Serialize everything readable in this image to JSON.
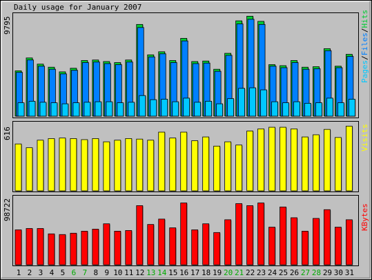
{
  "title": "Daily usage for January 2007",
  "colors": {
    "background": "#c0c0c0",
    "hits": "#00cc33",
    "files": "#0080ff",
    "pages": "#00c8ff",
    "visits": "#ffff00",
    "kbytes": "#ff0000",
    "weekend_label": "#00aa00",
    "weekday_label": "#000000"
  },
  "chart_data": [
    {
      "type": "bar",
      "panel": "hits-files-pages",
      "title": "Daily usage for January 2007",
      "ymax_label": "9795",
      "legend_parts": [
        {
          "text": "Pages",
          "color": "#00c8ff"
        },
        {
          "text": "/",
          "color": "#000000"
        },
        {
          "text": "Files",
          "color": "#0080ff"
        },
        {
          "text": "/",
          "color": "#000000"
        },
        {
          "text": "Hits",
          "color": "#00cc33"
        }
      ],
      "ylim": [
        0,
        9795
      ],
      "categories": [
        "1",
        "2",
        "3",
        "4",
        "5",
        "6",
        "7",
        "8",
        "9",
        "10",
        "11",
        "12",
        "13",
        "14",
        "15",
        "16",
        "17",
        "18",
        "19",
        "20",
        "21",
        "22",
        "23",
        "24",
        "25",
        "26",
        "27",
        "28",
        "29",
        "30",
        "31"
      ],
      "weekend_days": [
        "6",
        "7",
        "13",
        "14",
        "20",
        "21",
        "27",
        "28"
      ],
      "series": [
        {
          "name": "Hits",
          "values": [
            4400,
            5650,
            5050,
            4750,
            4300,
            4650,
            5400,
            5450,
            5300,
            5200,
            5450,
            8900,
            5950,
            6250,
            5400,
            7550,
            5300,
            5350,
            4550,
            6100,
            9250,
            9700,
            9200,
            5000,
            4900,
            5400,
            4750,
            4800,
            6550,
            4850,
            6000
          ]
        },
        {
          "name": "Files",
          "values": [
            4250,
            5450,
            4850,
            4550,
            4100,
            4450,
            5200,
            5250,
            5100,
            5000,
            5250,
            8600,
            5750,
            6050,
            5200,
            7300,
            5100,
            5150,
            4350,
            5900,
            8950,
            9400,
            8900,
            4850,
            4700,
            5200,
            4550,
            4600,
            6350,
            4700,
            5800
          ]
        },
        {
          "name": "Pages",
          "values": [
            1300,
            1450,
            1350,
            1300,
            1200,
            1300,
            1350,
            1400,
            1400,
            1300,
            1350,
            2000,
            1600,
            1650,
            1400,
            1750,
            1350,
            1450,
            1200,
            1700,
            2700,
            2750,
            2550,
            1400,
            1300,
            1400,
            1250,
            1300,
            1750,
            1300,
            1650
          ]
        }
      ]
    },
    {
      "type": "bar",
      "panel": "visits",
      "ymax_label": "616",
      "legend_parts": [
        {
          "text": "Visits",
          "color": "#ffff00"
        }
      ],
      "ylim": [
        0,
        616
      ],
      "series": [
        {
          "name": "Visits",
          "values": [
            435,
            400,
            470,
            485,
            490,
            485,
            475,
            485,
            455,
            470,
            485,
            480,
            470,
            545,
            490,
            545,
            465,
            500,
            415,
            455,
            425,
            555,
            575,
            590,
            590,
            575,
            500,
            520,
            570,
            495,
            600
          ]
        }
      ]
    },
    {
      "type": "bar",
      "panel": "kbytes",
      "ymax_label": "98722",
      "legend_parts": [
        {
          "text": "KBytes",
          "color": "#ff0000"
        }
      ],
      "ylim": [
        0,
        98722
      ],
      "series": [
        {
          "name": "KBytes",
          "values": [
            52000,
            54000,
            54000,
            46000,
            45000,
            47000,
            50000,
            53000,
            61000,
            50000,
            51000,
            88000,
            60000,
            68000,
            55000,
            92000,
            52000,
            61000,
            48000,
            67000,
            91000,
            88000,
            92000,
            56000,
            86000,
            70000,
            50000,
            69000,
            82000,
            56000,
            67000
          ]
        }
      ]
    }
  ]
}
